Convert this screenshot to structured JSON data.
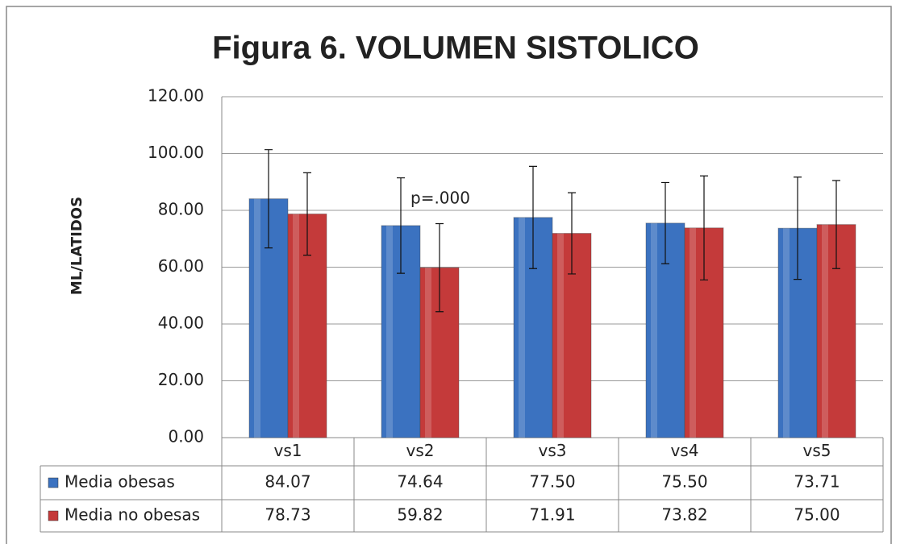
{
  "chart_data": {
    "type": "bar",
    "title": "Figura 6. VOLUMEN SISTOLICO",
    "y_label": "ML/LATIDOS",
    "categories": [
      "vs1",
      "vs2",
      "vs3",
      "vs4",
      "vs5"
    ],
    "series": [
      {
        "name": "Media obesas",
        "color": "#3b72c0",
        "values": [
          84.07,
          74.64,
          77.5,
          75.5,
          73.71
        ],
        "value_labels": [
          "84.07",
          "74.64",
          "77.50",
          "75.50",
          "73.71"
        ],
        "errors": [
          17.3,
          16.8,
          18,
          14.3,
          18
        ]
      },
      {
        "name": "Media no obesas",
        "color": "#c43a3a",
        "values": [
          78.73,
          59.82,
          71.91,
          73.82,
          75
        ],
        "value_labels": [
          "78.73",
          "59.82",
          "71.91",
          "73.82",
          "75.00"
        ],
        "errors": [
          14.5,
          15.5,
          14.3,
          18.3,
          15.5
        ]
      }
    ],
    "annotations": [
      {
        "text": "p=.000",
        "category": 1,
        "y": 84
      }
    ],
    "ylim": [
      0,
      120
    ],
    "yticks": [
      {
        "value": 0,
        "label": "0.00"
      },
      {
        "value": 20,
        "label": "20.00"
      },
      {
        "value": 40,
        "label": "40.00"
      },
      {
        "value": 60,
        "label": "60.00"
      },
      {
        "value": 80,
        "label": "80.00"
      },
      {
        "value": 100,
        "label": "100.00"
      },
      {
        "value": 120,
        "label": "120.00"
      }
    ],
    "grid": true,
    "legend": "table"
  }
}
